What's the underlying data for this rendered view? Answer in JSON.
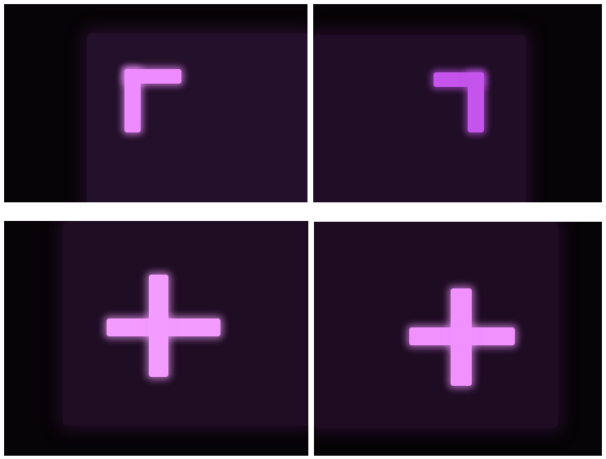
{
  "figure": {
    "background_color": "#ffffff",
    "panels": [
      {
        "name": "top-left",
        "glyph": "corner-top-left",
        "glow_color": "#ee8cff",
        "screen_color": "#23102a"
      },
      {
        "name": "top-right",
        "glyph": "corner-top-right",
        "glow_color": "#c454ec",
        "screen_color": "#200e26"
      },
      {
        "name": "bottom-left",
        "glyph": "plus",
        "glow_color": "#f49bff",
        "screen_color": "#1e0d23"
      },
      {
        "name": "bottom-right",
        "glyph": "plus",
        "glow_color": "#f091ff",
        "screen_color": "#1d0c22"
      }
    ]
  }
}
